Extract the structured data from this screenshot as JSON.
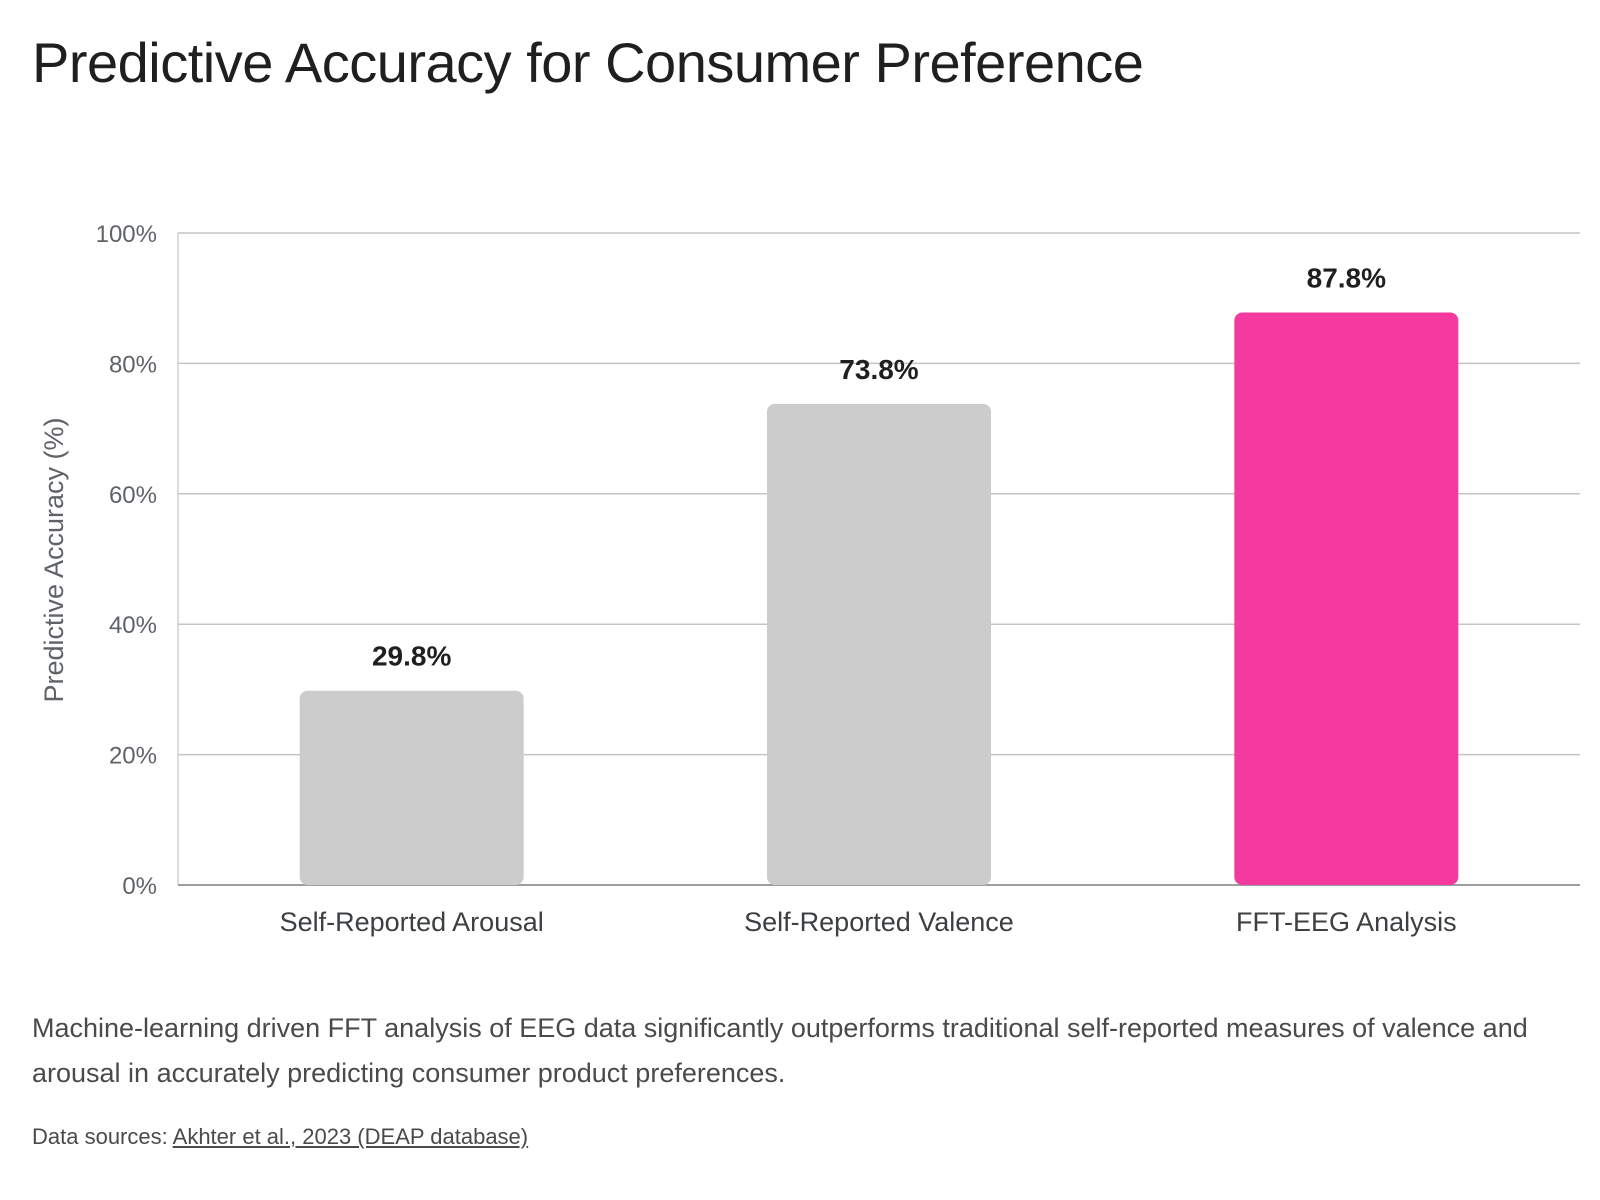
{
  "title": "Predictive Accuracy for Consumer Preference",
  "caption": "Machine-learning driven FFT analysis of EEG data significantly outperforms traditional self-reported measures of valence and arousal in accurately predicting consumer product preferences.",
  "source": {
    "prefix": "Data sources: ",
    "link_text": "Akhter et al., 2023 (DEAP database)"
  },
  "colors": {
    "default_bar": "#cccccc",
    "highlight_bar": "#f4399f",
    "gridline": "#c4c4c4",
    "axis": "#9e9e9e"
  },
  "chart_data": {
    "type": "bar",
    "title": "Predictive Accuracy for Consumer Preference",
    "xlabel": "",
    "ylabel": "Predictive Accuracy (%)",
    "categories": [
      "Self-Reported Arousal",
      "Self-Reported Valence",
      "FFT-EEG Analysis"
    ],
    "values": [
      29.8,
      73.8,
      87.8
    ],
    "value_labels": [
      "29.8%",
      "73.8%",
      "87.8%"
    ],
    "highlight_index": 2,
    "ylim": [
      0,
      100
    ],
    "yticks": [
      0,
      20,
      40,
      60,
      80,
      100
    ],
    "ytick_labels": [
      "0%",
      "20%",
      "40%",
      "60%",
      "80%",
      "100%"
    ],
    "grid": true,
    "legend": "none"
  }
}
